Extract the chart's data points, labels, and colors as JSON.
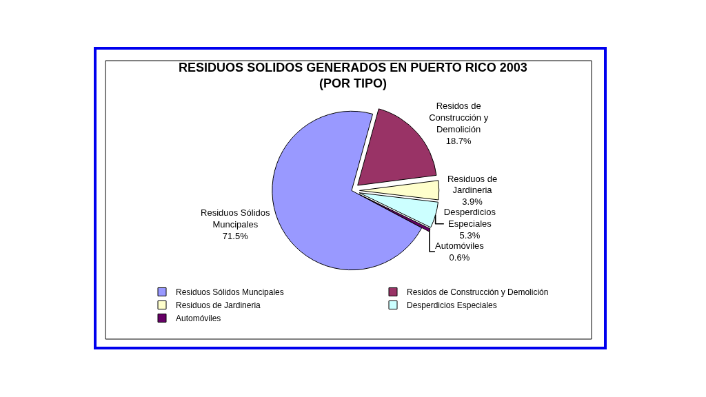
{
  "chart_data": {
    "type": "pie",
    "title": "RESIDUOS SOLIDOS GENERADOS EN PUERTO RICO 2003\n(POR TIPO)",
    "categories": [
      "Residuos Sólidos Muncipales",
      "Residos de Construcción y Demolición",
      "Residuos de Jardineria",
      "Desperdicios Especiales",
      "Automóviles"
    ],
    "values": [
      71.5,
      18.7,
      3.9,
      5.3,
      0.6
    ],
    "value_labels": [
      "71.5%",
      "18.7%",
      "3.9%",
      "5.3%",
      "0.6%"
    ],
    "colors": [
      "#9999ff",
      "#993366",
      "#ffffcc",
      "#ccffff",
      "#660066"
    ],
    "legend": "bottom"
  }
}
